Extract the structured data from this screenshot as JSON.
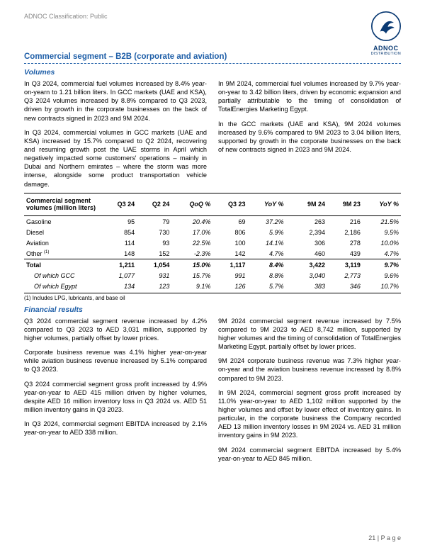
{
  "classification": "ADNOC Classification: Public",
  "logo": {
    "brand": "ADNOC",
    "sub": "DISTRIBUTION",
    "color": "#0a3a73"
  },
  "section_title": "Commercial segment – B2B (corporate and aviation)",
  "volumes_head": "Volumes",
  "volumes_paras": [
    "In Q3 2024, commercial fuel volumes increased by 8.4% year-on-yearn to 1.21 billion liters. In GCC markets (UAE and KSA), Q3 2024 volumes increased by 8.8% compared to Q3 2023, driven by growth in the corporate businesses on the back of new contracts signed in 2023 and 9M 2024.",
    "In Q3 2024, commercial volumes in GCC markets (UAE and KSA) increased by 15.7% compared to Q2 2024, recovering and resuming growth post the UAE storms in April which negatively impacted some customers' operations – mainly in Dubai and Northern emirates – where the storm was more intense, alongside some product transportation vehicle damage.",
    "In 9M 2024, commercial fuel volumes increased by 9.7% year-on-year to 3.42 billion liters, driven by economic expansion and partially attributable to the timing of consolidation of TotalEnergies Marketing Egypt.",
    "In the GCC markets (UAE and KSA), 9M 2024 volumes increased by 9.6% compared to 9M 2023 to 3.04 billion liters, supported by growth in the corporate businesses on the back of new contracts signed in 2023 and 9M 2024."
  ],
  "table": {
    "title_line1": "Commercial segment",
    "title_line2": "volumes (million liters)",
    "headers": [
      "Q3 24",
      "Q2 24",
      "QoQ %",
      "Q3 23",
      "YoY %",
      "9M 24",
      "9M 23",
      "YoY %"
    ],
    "rows": [
      {
        "label": "Gasoline",
        "c": [
          "95",
          "79",
          "20.4%",
          "69",
          "37.2%",
          "263",
          "216",
          "21.5%"
        ]
      },
      {
        "label": "Diesel",
        "c": [
          "854",
          "730",
          "17.0%",
          "806",
          "5.9%",
          "2,394",
          "2,186",
          "9.5%"
        ]
      },
      {
        "label": "Aviation",
        "c": [
          "114",
          "93",
          "22.5%",
          "100",
          "14.1%",
          "306",
          "278",
          "10.0%"
        ]
      },
      {
        "label_html": "Other <span class='sup'>(1)</span>",
        "label": "Other (1)",
        "c": [
          "148",
          "152",
          "-2.3%",
          "142",
          "4.7%",
          "460",
          "439",
          "4.7%"
        ]
      }
    ],
    "total": {
      "label": "Total",
      "c": [
        "1,211",
        "1,054",
        "15.0%",
        "1,117",
        "8.4%",
        "3,422",
        "3,119",
        "9.7%"
      ]
    },
    "ofwhich": [
      {
        "label": "Of which GCC",
        "c": [
          "1,077",
          "931",
          "15.7%",
          "991",
          "8.8%",
          "3,040",
          "2,773",
          "9.6%"
        ]
      },
      {
        "label": "Of which Egypt",
        "c": [
          "134",
          "123",
          "9.1%",
          "126",
          "5.7%",
          "383",
          "346",
          "10.7%"
        ]
      }
    ],
    "note": "(1) Includes LPG, lubricants, and base oil",
    "italic_cols": [
      2,
      4,
      7
    ]
  },
  "fin_head": "Financial results",
  "fin_paras_left": [
    "Q3 2024 commercial segment revenue increased by 4.2% compared to Q3 2023 to AED 3,031 million, supported by higher volumes, partially offset by lower prices.",
    "Corporate business revenue was 4.1% higher year-on-year while aviation business revenue increased by 5.1% compared to Q3 2023.",
    "Q3 2024 commercial segment gross profit increased by 4.9% year-on-year to AED 415 million driven by higher volumes, despite AED 16 million inventory loss in Q3 2024 vs. AED 51 million inventory gains in Q3 2023.",
    "In Q3 2024, commercial segment EBITDA increased by 2.1% year-on-year to AED 338 million."
  ],
  "fin_paras_right": [
    "9M 2024 commercial segment revenue increased by 7.5% compared to 9M 2023 to AED 8,742 million, supported by higher volumes and the timing of consolidation of TotalEnergies Marketing Egypt, partially offset by lower prices.",
    "9M 2024 corporate business revenue was 7.3% higher year-on-year and the aviation business revenue increased by 8.8% compared to 9M 2023.",
    "In 9M 2024, commercial segment gross profit increased by 11.0% year-on-year to AED 1,102 million supported by the higher volumes and offset by lower effect of inventory gains. In particular, in the corporate business the Company recorded AED 13 million inventory losses in 9M 2024 vs. AED 31 million inventory gains in 9M 2023.",
    "9M 2024 commercial segment EBITDA increased by 5.4% year-on-year to AED 845 million."
  ],
  "page_num": "21 | P a g e"
}
